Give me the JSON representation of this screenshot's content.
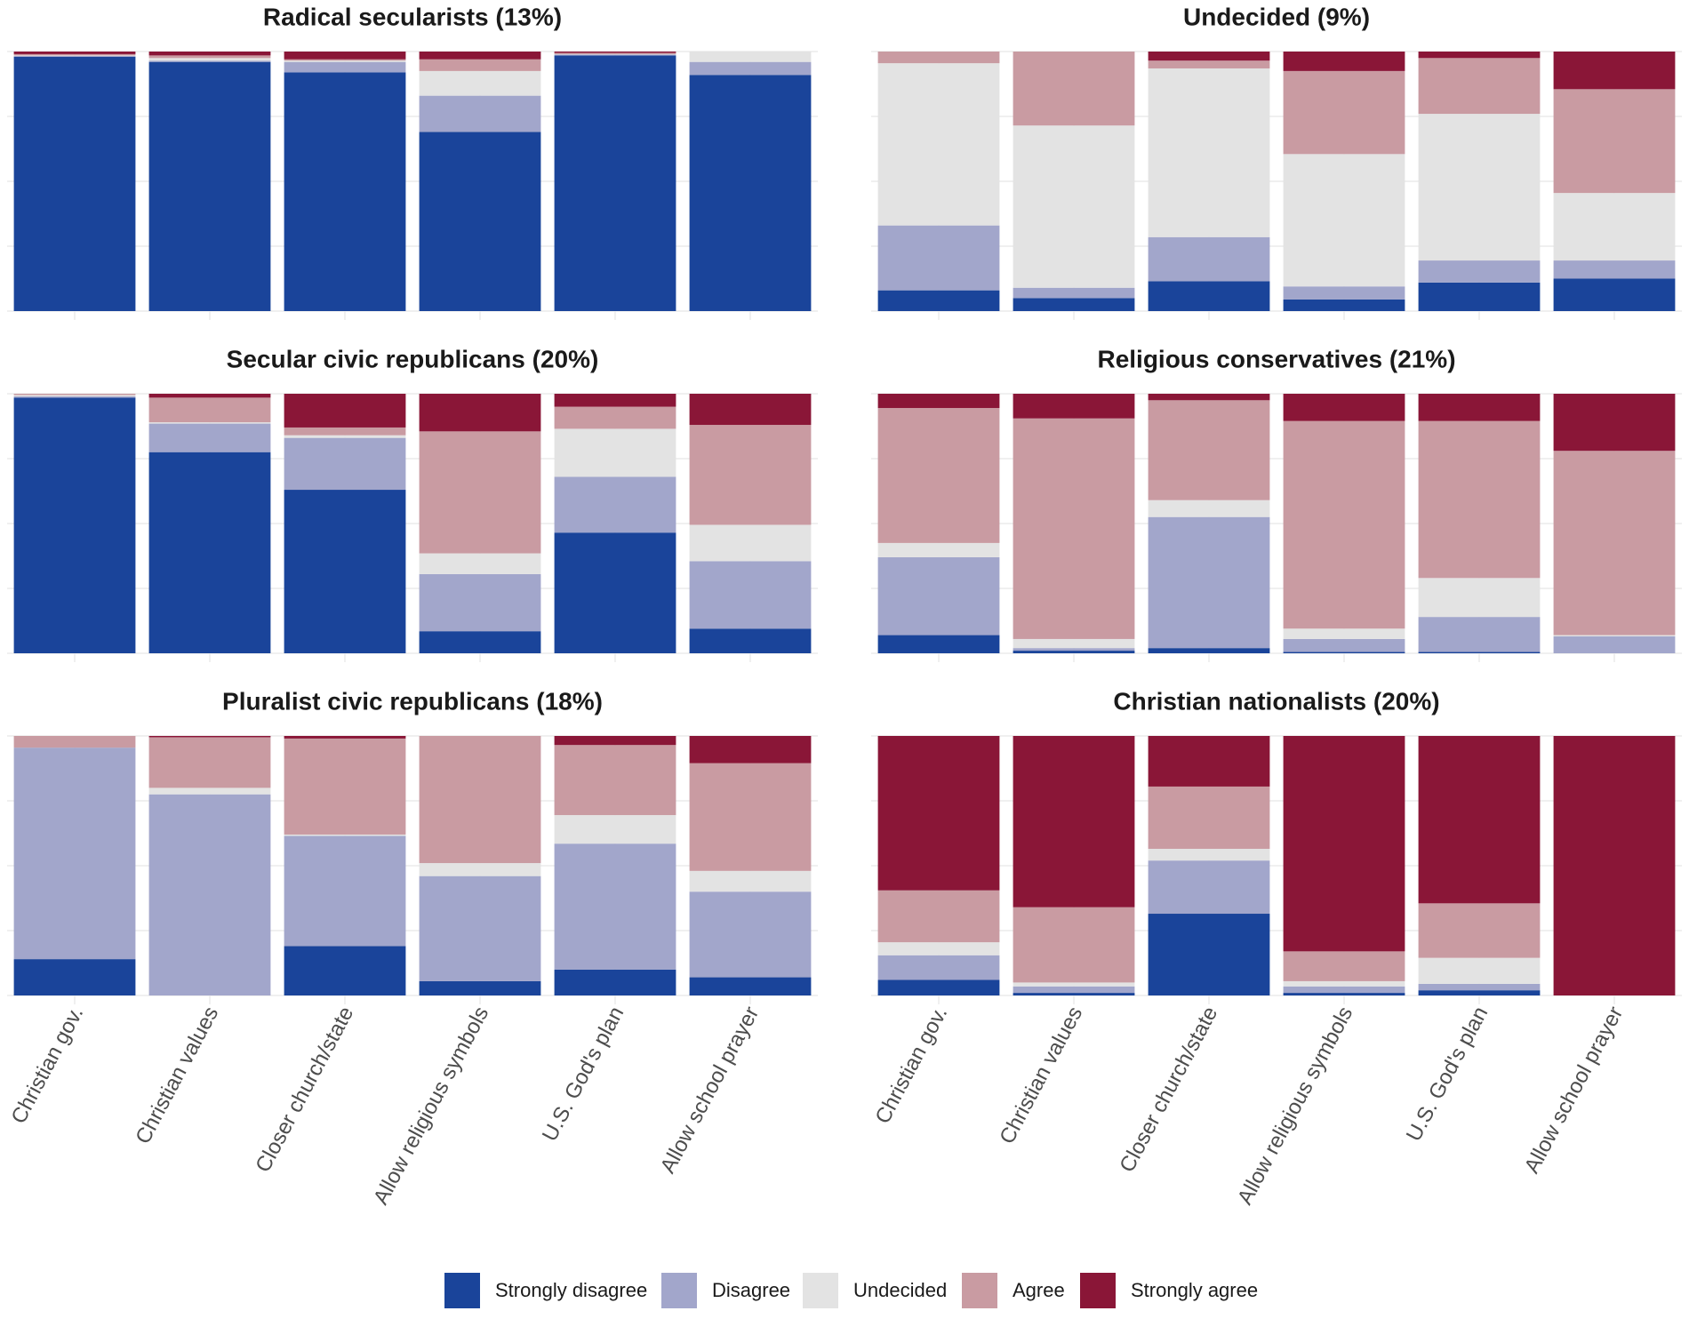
{
  "colors": {
    "strongly_disagree": "#1a449a",
    "disagree": "#a2a6cb",
    "undecided": "#e3e3e3",
    "agree": "#c99ba2",
    "strongly_agree": "#8a1637",
    "panel_background": "#ffffff",
    "gridline": "#ebebeb"
  },
  "legend": {
    "position": "bottom",
    "items": [
      {
        "key": "strongly_disagree",
        "label": "Strongly disagree"
      },
      {
        "key": "disagree",
        "label": "Disagree"
      },
      {
        "key": "undecided",
        "label": "Undecided"
      },
      {
        "key": "agree",
        "label": "Agree"
      },
      {
        "key": "strongly_agree",
        "label": "Strongly agree"
      }
    ]
  },
  "chart_data": {
    "type": "bar",
    "stacked": true,
    "normalized": true,
    "grid": true,
    "layout": "3 rows x 2 columns of faceted panels",
    "categories": [
      "Christian gov.",
      "Christian values",
      "Closer church/state",
      "Allow religious symbols",
      "U.S. God's plan",
      "Allow school prayer"
    ],
    "response_levels": [
      "Strongly disagree",
      "Disagree",
      "Undecided",
      "Agree",
      "Strongly agree"
    ],
    "ylim": [
      0,
      100
    ],
    "panels": [
      {
        "title": "Radical secularists (13%)",
        "values": [
          [
            98.0,
            0.3,
            0.2,
            0.5,
            1.0
          ],
          [
            96.0,
            0.5,
            1.0,
            1.0,
            1.5
          ],
          [
            92.0,
            4.0,
            0.5,
            0.5,
            3.0
          ],
          [
            69.0,
            14.0,
            9.5,
            4.5,
            3.0
          ],
          [
            98.5,
            0.3,
            0.2,
            0.5,
            0.5
          ],
          [
            91.0,
            5.0,
            4.0,
            0.0,
            0.0
          ]
        ]
      },
      {
        "title": "Undecided (9%)",
        "values": [
          [
            8.0,
            25.0,
            62.5,
            4.5,
            0.0
          ],
          [
            5.0,
            4.0,
            62.5,
            28.5,
            0.0
          ],
          [
            11.5,
            17.0,
            65.0,
            3.0,
            3.5
          ],
          [
            4.5,
            5.0,
            51.0,
            32.0,
            7.5
          ],
          [
            11.0,
            8.5,
            56.5,
            21.5,
            2.5
          ],
          [
            12.5,
            7.0,
            26.0,
            40.0,
            14.5
          ]
        ]
      },
      {
        "title": "Secular civic republicans (20%)",
        "values": [
          [
            98.5,
            0.5,
            0.5,
            0.5,
            0.0
          ],
          [
            77.5,
            11.0,
            0.5,
            9.5,
            1.5
          ],
          [
            63.0,
            20.0,
            1.0,
            3.0,
            13.0
          ],
          [
            8.5,
            22.0,
            8.0,
            47.0,
            14.5
          ],
          [
            46.5,
            21.5,
            18.5,
            8.5,
            5.0
          ],
          [
            9.5,
            26.0,
            14.0,
            38.5,
            12.0
          ]
        ]
      },
      {
        "title": "Religious conservatives (21%)",
        "values": [
          [
            7.0,
            30.0,
            5.5,
            52.0,
            5.5
          ],
          [
            1.0,
            1.0,
            3.5,
            85.0,
            9.5
          ],
          [
            2.0,
            50.5,
            6.5,
            38.5,
            2.5
          ],
          [
            0.5,
            5.0,
            4.0,
            80.0,
            10.5
          ],
          [
            0.5,
            13.5,
            15.0,
            60.5,
            10.5
          ],
          [
            0.0,
            6.5,
            0.5,
            71.0,
            22.0
          ]
        ]
      },
      {
        "title": "Pluralist civic republicans (18%)",
        "values": [
          [
            14.0,
            81.5,
            0.0,
            4.5,
            0.0
          ],
          [
            0.0,
            77.5,
            2.5,
            19.5,
            0.5
          ],
          [
            19.0,
            42.5,
            0.5,
            37.0,
            1.0
          ],
          [
            5.5,
            40.5,
            5.0,
            49.0,
            0.0
          ],
          [
            10.0,
            48.5,
            11.0,
            27.0,
            3.5
          ],
          [
            7.0,
            33.0,
            8.0,
            41.5,
            10.5
          ]
        ]
      },
      {
        "title": "Christian nationalists (20%)",
        "values": [
          [
            6.0,
            9.5,
            5.0,
            20.0,
            59.5
          ],
          [
            1.0,
            2.5,
            1.5,
            29.0,
            66.0
          ],
          [
            31.5,
            20.5,
            4.5,
            24.0,
            19.5
          ],
          [
            1.0,
            2.5,
            2.0,
            11.5,
            83.0
          ],
          [
            2.0,
            2.5,
            10.0,
            21.0,
            64.5
          ],
          [
            0.0,
            0.0,
            0.0,
            0.0,
            100.0
          ]
        ]
      }
    ]
  }
}
